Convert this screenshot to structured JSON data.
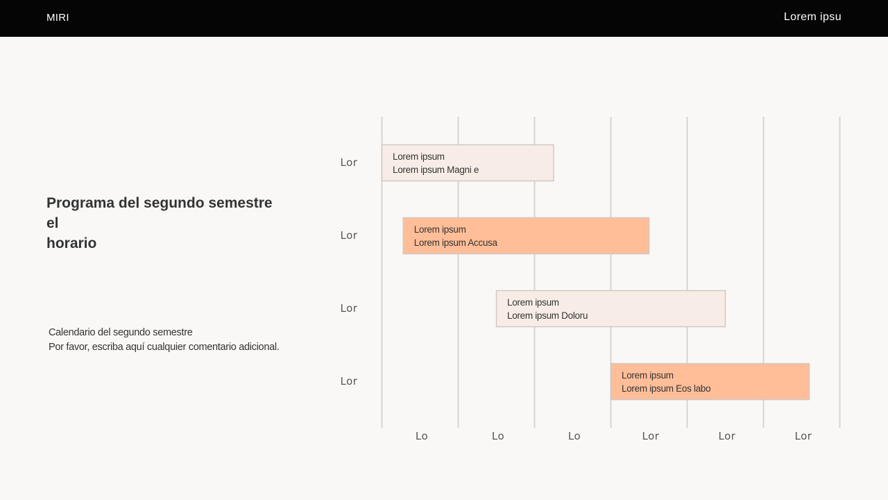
{
  "header": {
    "brand": "MIRI",
    "right_text": "Lorem ipsu"
  },
  "title_lines": [
    "Programa del segundo semestre",
    "el",
    "horario"
  ],
  "description_lines": [
    "Calendario del segundo semestre",
    "Por favor, escriba aquí cualquier comentario adicional."
  ],
  "colors": {
    "light_fill": "#f8ede6",
    "accent_fill": "#ffbe98",
    "bar_border": "#cfc8c4",
    "grid": "#d9d3cf"
  },
  "chart_data": {
    "type": "gantt",
    "row_labels": [
      "Lor",
      "Lor",
      "Lor",
      "Lor"
    ],
    "column_labels": [
      "Lo",
      "Lo",
      "Lo",
      "Lor",
      "Lor",
      "Lor"
    ],
    "xlim": [
      0,
      6
    ],
    "grid": true,
    "tasks": [
      {
        "row": 0,
        "start": 0.0,
        "end": 2.25,
        "line1": "Lorem ipsum",
        "line2": "Lorem ipsum Magni e",
        "style": "light"
      },
      {
        "row": 1,
        "start": 0.28,
        "end": 3.5,
        "line1": "Lorem ipsum",
        "line2": "Lorem ipsum Accusa",
        "style": "accent"
      },
      {
        "row": 2,
        "start": 1.5,
        "end": 4.5,
        "line1": "Lorem ipsum",
        "line2": "Lorem ipsum Doloru",
        "style": "light"
      },
      {
        "row": 3,
        "start": 3.0,
        "end": 5.6,
        "line1": "Lorem ipsum",
        "line2": "Lorem ipsum Eos labo",
        "style": "accent"
      }
    ]
  }
}
